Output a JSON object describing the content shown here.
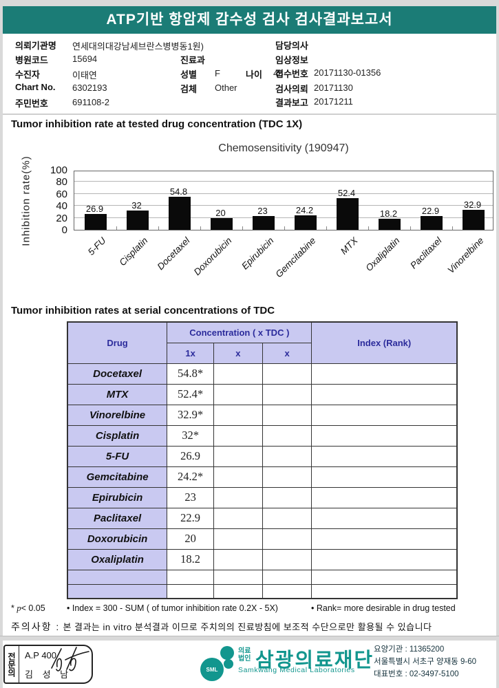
{
  "page": {
    "title": "ATP기반 항암제 감수성 검사 검사결과보고서"
  },
  "info": {
    "org_label": "의뢰기관명",
    "org": "연세대의대강남세브란스병병동1원)",
    "hospital_code_label": "병원코드",
    "hospital_code": "15694",
    "patient_label": "수진자",
    "patient": "이태연",
    "chart_no_label": "Chart No.",
    "chart_no": "6302193",
    "resident_id_label": "주민번호",
    "resident_id": "691108-2",
    "dept_label": "진료과",
    "dept": "",
    "sex_label": "성별",
    "sex": "F",
    "age_label": "나이",
    "age": "48",
    "specimen_label": "검체",
    "specimen": "Other",
    "doctor_label": "담당의사",
    "doctor": "",
    "clinical_label": "임상정보",
    "clinical": "",
    "receipt_no_label": "접수번호",
    "receipt_no": "20171130-01356",
    "request_date_label": "검사의뢰",
    "request_date": "20171130",
    "report_date_label": "결과보고",
    "report_date": "20171211"
  },
  "section1": {
    "heading": "Tumor inhibition rate at tested drug concentration (TDC 1X)"
  },
  "chart_data": {
    "type": "bar",
    "title": "Chemosensitivity (190947)",
    "ylabel": "Inhibition rate(%)",
    "categories": [
      "5-FU",
      "Cisplatin",
      "Docetaxel",
      "Doxorubicin",
      "Epirubicin",
      "Gemcitabine",
      "MTX",
      "Oxaliplatin",
      "Paclitaxel",
      "Vinorelbine"
    ],
    "values": [
      26.9,
      32,
      54.8,
      20,
      23,
      24.2,
      52.4,
      18.2,
      22.9,
      32.9
    ],
    "ylim": [
      0,
      100
    ],
    "yticks": [
      0,
      20,
      40,
      60,
      80,
      100
    ],
    "grid": true,
    "bar_color": "#0a0a0a",
    "legend": "none"
  },
  "section2": {
    "heading": "Tumor inhibition rates at serial concentrations of TDC"
  },
  "table": {
    "col_drug": "Drug",
    "col_concentration": "Concentration ( x TDC )",
    "col_index": "Index (Rank)",
    "subcols": [
      "1x",
      "x",
      "x"
    ],
    "rows": [
      {
        "drug": "Docetaxel",
        "c1": "54.8*",
        "c2": "",
        "c3": "",
        "index": ""
      },
      {
        "drug": "MTX",
        "c1": "52.4*",
        "c2": "",
        "c3": "",
        "index": ""
      },
      {
        "drug": "Vinorelbine",
        "c1": "32.9*",
        "c2": "",
        "c3": "",
        "index": ""
      },
      {
        "drug": "Cisplatin",
        "c1": "32*",
        "c2": "",
        "c3": "",
        "index": ""
      },
      {
        "drug": "5-FU",
        "c1": "26.9",
        "c2": "",
        "c3": "",
        "index": ""
      },
      {
        "drug": "Gemcitabine",
        "c1": "24.2*",
        "c2": "",
        "c3": "",
        "index": ""
      },
      {
        "drug": "Epirubicin",
        "c1": "23",
        "c2": "",
        "c3": "",
        "index": ""
      },
      {
        "drug": "Paclitaxel",
        "c1": "22.9",
        "c2": "",
        "c3": "",
        "index": ""
      },
      {
        "drug": "Doxorubicin",
        "c1": "20",
        "c2": "",
        "c3": "",
        "index": ""
      },
      {
        "drug": "Oxaliplatin",
        "c1": "18.2",
        "c2": "",
        "c3": "",
        "index": ""
      },
      {
        "drug": "",
        "c1": "",
        "c2": "",
        "c3": "",
        "index": ""
      },
      {
        "drug": "",
        "c1": "",
        "c2": "",
        "c3": "",
        "index": ""
      }
    ]
  },
  "footnotes": {
    "sig_star": "*",
    "sig_p": "p",
    "sig_rest": "< 0.05",
    "index_note": "• Index = 300 - SUM ( of tumor inhibition rate 0.2X  -  5X)",
    "rank_note": "• Rank= more desirable in drug tested",
    "caution_label": "주의사항 :",
    "caution_text": "본 결과는 in vitro 분석결과 이므로 주치의의 진료방침에 보조적 수단으로만 활용될 수 있습니다"
  },
  "footer": {
    "stamp": {
      "role_vertical": "전문의",
      "code": "A.P 400",
      "name": "김 성 남"
    },
    "logo": {
      "sml": "SML",
      "org_small1": "의료",
      "org_small2": "법인",
      "org_name": "삼광의료재단",
      "org_en": "Samkwang Medical Laboratories"
    },
    "contact1": "요양기관 : 11365200",
    "contact2": "서울특별시 서초구 양재동 9-60",
    "contact3": "대표번호 : 02-3497-5100"
  },
  "colors": {
    "header_teal": "#1b7c76",
    "logo_teal": "#12968e",
    "table_lavender": "#c9c9f1",
    "table_navy": "#2b2b9b",
    "bar_black": "#0a0a0a"
  }
}
